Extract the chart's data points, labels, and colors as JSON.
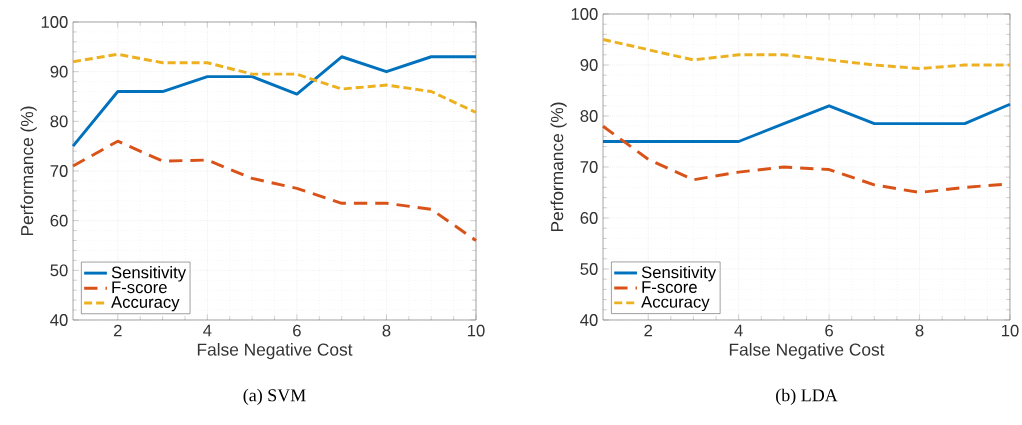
{
  "chart_data": [
    {
      "type": "line",
      "annotations": [
        "(a) SVM"
      ],
      "xlabel": "False Negative Cost",
      "ylabel": "Performance (%)",
      "x": [
        1,
        2,
        3,
        4,
        5,
        6,
        7,
        8,
        9,
        10
      ],
      "xlim": [
        1,
        10
      ],
      "xticks": [
        2,
        4,
        6,
        8,
        10
      ],
      "ylim": [
        40,
        100
      ],
      "yticks": [
        40,
        50,
        60,
        70,
        80,
        90,
        100
      ],
      "grid": true,
      "legend": "bottom left",
      "series": [
        {
          "name": "Sensitivity",
          "color": "#0072bd",
          "line_style": "solid",
          "values": [
            75,
            86,
            86,
            89,
            89,
            85.5,
            93,
            90,
            93,
            93
          ]
        },
        {
          "name": "F-score",
          "color": "#d95319",
          "line_style": "dashed",
          "values": [
            71,
            76,
            72,
            72.2,
            68.5,
            66.5,
            63.5,
            63.5,
            62.3,
            56
          ]
        },
        {
          "name": "Accuracy",
          "color": "#edb120",
          "line_style": "dashed",
          "values": [
            92,
            93.5,
            91.8,
            91.8,
            89.5,
            89.5,
            86.5,
            87.3,
            86,
            81.8
          ]
        }
      ]
    },
    {
      "type": "line",
      "annotations": [
        "(b) LDA"
      ],
      "xlabel": "False Negative Cost",
      "ylabel": "Performance (%)",
      "x": [
        1,
        2,
        3,
        4,
        5,
        6,
        7,
        8,
        9,
        10
      ],
      "xlim": [
        1,
        10
      ],
      "xticks": [
        2,
        4,
        6,
        8,
        10
      ],
      "ylim": [
        40,
        100
      ],
      "yticks": [
        40,
        50,
        60,
        70,
        80,
        90,
        100
      ],
      "grid": true,
      "legend": "bottom left",
      "series": [
        {
          "name": "Sensitivity",
          "color": "#0072bd",
          "line_style": "solid",
          "values": [
            75,
            75,
            75,
            75,
            78.5,
            82,
            78.5,
            78.5,
            78.5,
            82.3
          ]
        },
        {
          "name": "F-score",
          "color": "#d95319",
          "line_style": "dashed",
          "values": [
            78,
            71.5,
            67.5,
            69,
            70,
            69.5,
            66.5,
            65,
            66,
            66.7
          ]
        },
        {
          "name": "Accuracy",
          "color": "#edb120",
          "line_style": "dashed",
          "values": [
            95,
            93,
            91,
            92,
            92,
            91,
            90,
            89.3,
            90,
            90
          ]
        }
      ]
    }
  ]
}
